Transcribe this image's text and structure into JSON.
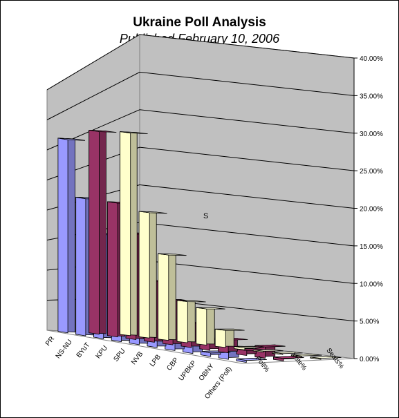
{
  "chart_data": {
    "type": "bar",
    "title": "Ukraine Poll Analysis",
    "subtitle": "Published February 10, 2006",
    "categories": [
      "PR",
      "NS-NU",
      "BYuT",
      "KPU",
      "SPU",
      "NVB",
      "LPB",
      "CBP",
      "UPBKP",
      "OBNY",
      "Others (Poll)"
    ],
    "series": [
      {
        "name": "Poll%",
        "color": "#9999ff",
        "values": [
          31.0,
          22.5,
          17.5,
          10.5,
          10.5,
          3.5,
          4.0,
          1.5,
          0.7,
          2.0,
          0.4
        ]
      },
      {
        "name": "Vote%",
        "color": "#993366",
        "values": [
          33.0,
          22.3,
          18.0,
          10.6,
          7.9,
          4.4,
          2.0,
          2.5,
          1.0,
          2.3,
          0.5
        ]
      },
      {
        "name": "Seats%",
        "color": "#ffffcc",
        "values": [
          33.5,
          21.2,
          14.8,
          7.3,
          6.6,
          3.2,
          0.4,
          0.2,
          0.2,
          0.2,
          0.2
        ]
      }
    ],
    "y_ticks": [
      "0.00%",
      "5.00%",
      "10.00%",
      "15.00%",
      "20.00%",
      "25.00%",
      "30.00%",
      "35.00%",
      "40.00%"
    ],
    "ylim": [
      0,
      40
    ],
    "annotation": "S",
    "grid": true
  }
}
